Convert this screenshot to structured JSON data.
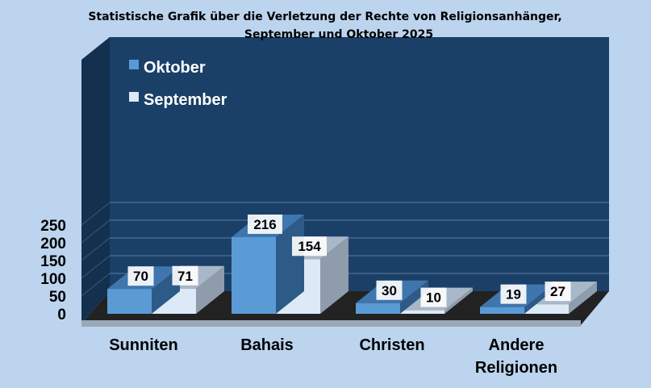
{
  "colors": {
    "background": "#bcd4ee",
    "wall": "#1b4068",
    "side_wall": "#13304f",
    "floor": "#222222",
    "oktober_front": "#5b9bd5",
    "oktober_top": "#3f76ad",
    "oktober_side": "#2d5a86",
    "september_front": "#dce9f7",
    "september_top": "#a9b8c8",
    "september_side": "#8e9cab",
    "label_box": "#ffffff"
  },
  "chart_data": {
    "type": "bar",
    "title": [
      "Statistische Grafik über die Verletzung der Rechte von Religionsanhänger,",
      "September und Oktober 2025"
    ],
    "categories": [
      [
        "Sunniten"
      ],
      [
        "Bahais"
      ],
      [
        "Christen"
      ],
      [
        "Andere",
        "Religionen"
      ]
    ],
    "series": [
      {
        "name": "Oktober",
        "values": [
          70,
          216,
          30,
          19
        ]
      },
      {
        "name": "September",
        "values": [
          71,
          154,
          10,
          27
        ]
      }
    ],
    "ylim": [
      0,
      250
    ],
    "yticks": [
      0,
      50,
      100,
      150,
      200,
      250
    ],
    "grid": true,
    "legend_position": "top-left",
    "style": "3d-clustered-column"
  }
}
